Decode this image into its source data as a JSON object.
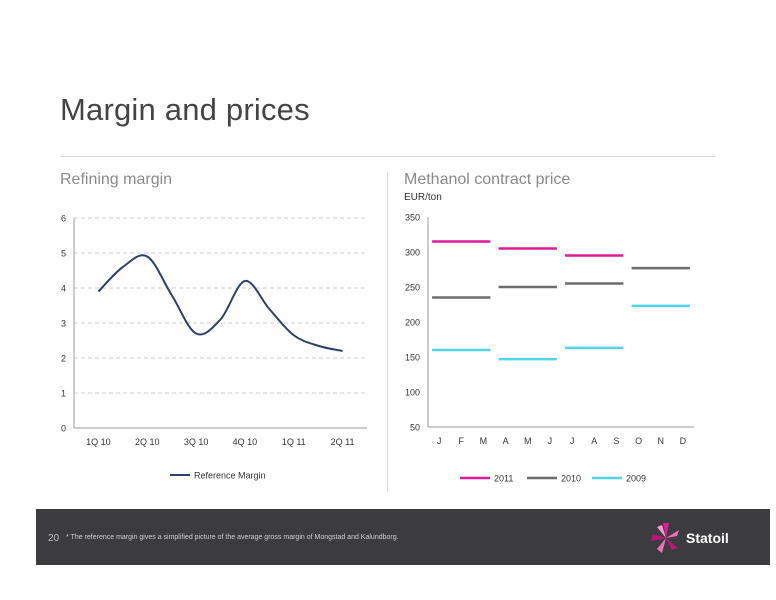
{
  "page": {
    "title": "Margin and prices",
    "page_number": "20",
    "footnote": "* The reference margin gives a simplified picture of the average gross margin of Mongstad and Kalundborg.",
    "logo_text": "Statoil"
  },
  "colors": {
    "reference_margin": "#2e3f6b",
    "s2011": "#e1199b",
    "s2010": "#6d6d6d",
    "s2009": "#4fd6e6",
    "footer_bg": "#3c3c3e",
    "logo_pink": "#e1199b"
  },
  "chart_data": [
    {
      "type": "line",
      "title": "Refining margin",
      "categories": [
        "1Q 10",
        "2Q 10",
        "3Q 10",
        "4Q 10",
        "1Q 11",
        "2Q 11"
      ],
      "x": [
        0,
        0.5,
        1,
        1.5,
        2,
        2.5,
        3,
        3.5,
        4,
        4.5,
        5
      ],
      "series": [
        {
          "name": "Reference Margin",
          "values": [
            3.9,
            4.6,
            4.9,
            3.8,
            2.7,
            3.1,
            4.2,
            3.4,
            2.65,
            2.35,
            2.2
          ]
        }
      ],
      "ylim": [
        0,
        6
      ],
      "yticks": [
        "0",
        "1",
        "2",
        "3",
        "4",
        "5",
        "6"
      ],
      "grid": true,
      "legend": "bottom"
    },
    {
      "type": "line",
      "title": "Methanol contract price",
      "ylabel": "EUR/ton",
      "categories": [
        "J",
        "F",
        "M",
        "A",
        "M",
        "J",
        "J",
        "A",
        "S",
        "O",
        "N",
        "D"
      ],
      "series": [
        {
          "name": "2011",
          "segments": [
            {
              "from": "J",
              "to": "M",
              "value": 315
            },
            {
              "from": "A",
              "to": "J",
              "value": 305
            },
            {
              "from": "J",
              "to": "S",
              "value": 295
            }
          ]
        },
        {
          "name": "2010",
          "segments": [
            {
              "from": "J",
              "to": "M",
              "value": 235
            },
            {
              "from": "A",
              "to": "J",
              "value": 250
            },
            {
              "from": "J",
              "to": "S",
              "value": 255
            },
            {
              "from": "O",
              "to": "D",
              "value": 277
            }
          ]
        },
        {
          "name": "2009",
          "segments": [
            {
              "from": "J",
              "to": "M",
              "value": 160
            },
            {
              "from": "A",
              "to": "J",
              "value": 147
            },
            {
              "from": "J",
              "to": "S",
              "value": 163
            },
            {
              "from": "O",
              "to": "D",
              "value": 223
            }
          ]
        }
      ],
      "ylim": [
        50,
        350
      ],
      "yticks": [
        "50",
        "100",
        "150",
        "200",
        "250",
        "300",
        "350"
      ],
      "grid": false,
      "legend": "bottom"
    }
  ]
}
